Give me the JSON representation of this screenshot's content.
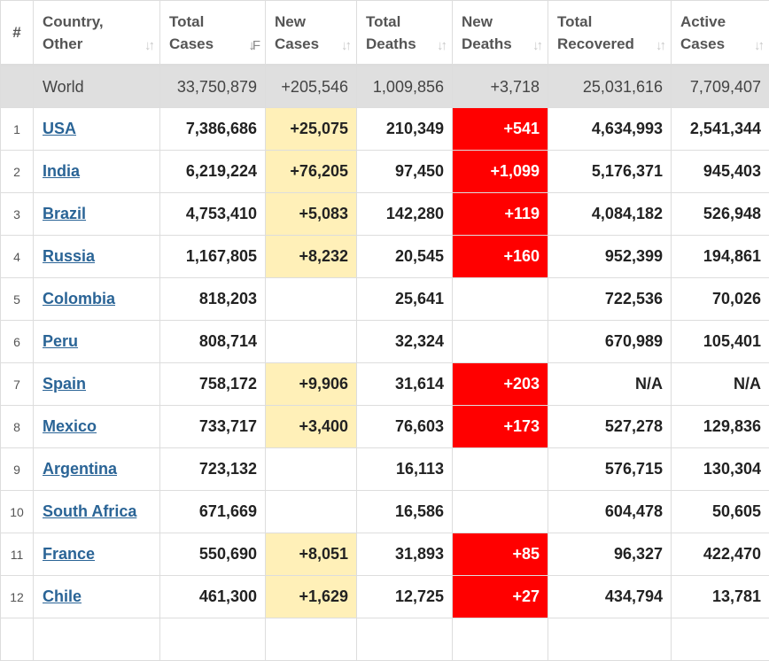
{
  "headers": {
    "rank": "#",
    "country_l1": "Country,",
    "country_l2": "Other",
    "total_cases_l1": "Total",
    "total_cases_l2": "Cases",
    "new_cases_l1": "New",
    "new_cases_l2": "Cases",
    "total_deaths_l1": "Total",
    "total_deaths_l2": "Deaths",
    "new_deaths_l1": "New",
    "new_deaths_l2": "Deaths",
    "total_recovered_l1": "Total",
    "total_recovered_l2": "Recovered",
    "active_cases_l1": "Active",
    "active_cases_l2": "Cases",
    "sort_glyph": "↓↑",
    "sort_active_glyph": "↓F"
  },
  "world": {
    "name": "World",
    "total_cases": "33,750,879",
    "new_cases": "+205,546",
    "total_deaths": "1,009,856",
    "new_deaths": "+3,718",
    "total_recovered": "25,031,616",
    "active_cases": "7,709,407"
  },
  "rows": [
    {
      "rank": "1",
      "country": "USA",
      "total_cases": "7,386,686",
      "new_cases": "+25,075",
      "total_deaths": "210,349",
      "new_deaths": "+541",
      "total_recovered": "4,634,993",
      "active_cases": "2,541,344"
    },
    {
      "rank": "2",
      "country": "India",
      "total_cases": "6,219,224",
      "new_cases": "+76,205",
      "total_deaths": "97,450",
      "new_deaths": "+1,099",
      "total_recovered": "5,176,371",
      "active_cases": "945,403"
    },
    {
      "rank": "3",
      "country": "Brazil",
      "total_cases": "4,753,410",
      "new_cases": "+5,083",
      "total_deaths": "142,280",
      "new_deaths": "+119",
      "total_recovered": "4,084,182",
      "active_cases": "526,948"
    },
    {
      "rank": "4",
      "country": "Russia",
      "total_cases": "1,167,805",
      "new_cases": "+8,232",
      "total_deaths": "20,545",
      "new_deaths": "+160",
      "total_recovered": "952,399",
      "active_cases": "194,861"
    },
    {
      "rank": "5",
      "country": "Colombia",
      "total_cases": "818,203",
      "new_cases": "",
      "total_deaths": "25,641",
      "new_deaths": "",
      "total_recovered": "722,536",
      "active_cases": "70,026"
    },
    {
      "rank": "6",
      "country": "Peru",
      "total_cases": "808,714",
      "new_cases": "",
      "total_deaths": "32,324",
      "new_deaths": "",
      "total_recovered": "670,989",
      "active_cases": "105,401"
    },
    {
      "rank": "7",
      "country": "Spain",
      "total_cases": "758,172",
      "new_cases": "+9,906",
      "total_deaths": "31,614",
      "new_deaths": "+203",
      "total_recovered": "N/A",
      "active_cases": "N/A"
    },
    {
      "rank": "8",
      "country": "Mexico",
      "total_cases": "733,717",
      "new_cases": "+3,400",
      "total_deaths": "76,603",
      "new_deaths": "+173",
      "total_recovered": "527,278",
      "active_cases": "129,836"
    },
    {
      "rank": "9",
      "country": "Argentina",
      "total_cases": "723,132",
      "new_cases": "",
      "total_deaths": "16,113",
      "new_deaths": "",
      "total_recovered": "576,715",
      "active_cases": "130,304"
    },
    {
      "rank": "10",
      "country": "South Africa",
      "total_cases": "671,669",
      "new_cases": "",
      "total_deaths": "16,586",
      "new_deaths": "",
      "total_recovered": "604,478",
      "active_cases": "50,605"
    },
    {
      "rank": "11",
      "country": "France",
      "total_cases": "550,690",
      "new_cases": "+8,051",
      "total_deaths": "31,893",
      "new_deaths": "+85",
      "total_recovered": "96,327",
      "active_cases": "422,470"
    },
    {
      "rank": "12",
      "country": "Chile",
      "total_cases": "461,300",
      "new_cases": "+1,629",
      "total_deaths": "12,725",
      "new_deaths": "+27",
      "total_recovered": "434,794",
      "active_cases": "13,781"
    },
    {
      "rank": "",
      "country": "",
      "total_cases": "",
      "new_cases": "",
      "total_deaths": "",
      "new_deaths": "",
      "total_recovered": "",
      "active_cases": ""
    }
  ],
  "colors": {
    "new_cases_highlight": "#fff0b8",
    "new_deaths_highlight": "#ff0000",
    "world_row_bg": "#dfdfdf",
    "link": "#2a6496"
  }
}
